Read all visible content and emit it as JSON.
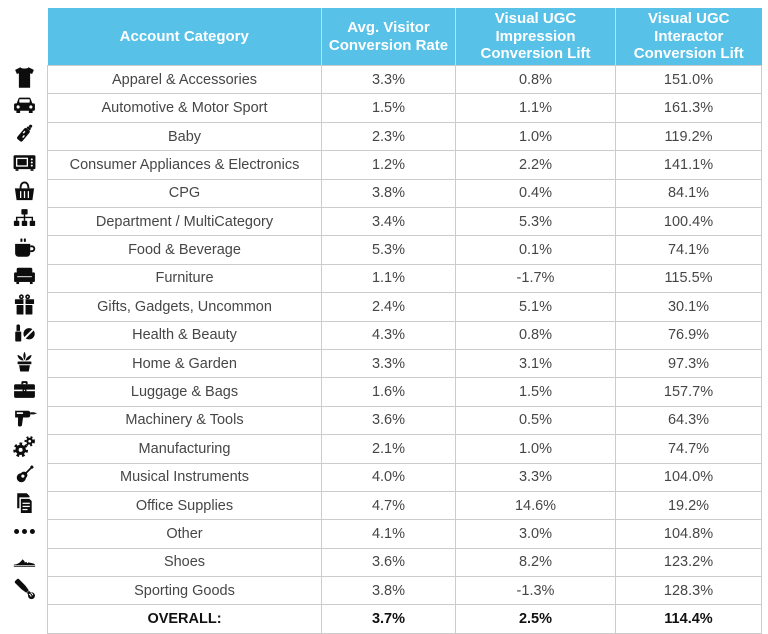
{
  "chart_data": {
    "type": "table",
    "columns": [
      "Account Category",
      "Avg. Visitor Conversion Rate",
      "Visual UGC Impression Conversion Lift",
      "Visual UGC Interactor Conversion Lift"
    ],
    "rows": [
      {
        "icon": "tshirt-icon",
        "category": "Apparel & Accessories",
        "values": [
          "3.3%",
          "0.8%",
          "151.0%"
        ]
      },
      {
        "icon": "car-icon",
        "category": "Automotive & Motor Sport",
        "values": [
          "1.5%",
          "1.1%",
          "161.3%"
        ]
      },
      {
        "icon": "baby-bottle-icon",
        "category": "Baby",
        "values": [
          "2.3%",
          "1.0%",
          "119.2%"
        ]
      },
      {
        "icon": "microwave-icon",
        "category": "Consumer Appliances & Electronics",
        "values": [
          "1.2%",
          "2.2%",
          "141.1%"
        ]
      },
      {
        "icon": "grocery-basket-icon",
        "category": "CPG",
        "values": [
          "3.8%",
          "0.4%",
          "84.1%"
        ]
      },
      {
        "icon": "sitemap-icon",
        "category": "Department / MultiCategory",
        "values": [
          "3.4%",
          "5.3%",
          "100.4%"
        ]
      },
      {
        "icon": "coffee-cup-icon",
        "category": "Food & Beverage",
        "values": [
          "5.3%",
          "0.1%",
          "74.1%"
        ]
      },
      {
        "icon": "couch-icon",
        "category": "Furniture",
        "values": [
          "1.1%",
          "-1.7%",
          "115.5%"
        ]
      },
      {
        "icon": "gift-icon",
        "category": "Gifts, Gadgets, Uncommon",
        "values": [
          "2.4%",
          "5.1%",
          "30.1%"
        ]
      },
      {
        "icon": "cosmetics-icon",
        "category": "Health & Beauty",
        "values": [
          "4.3%",
          "0.8%",
          "76.9%"
        ]
      },
      {
        "icon": "potted-plant-icon",
        "category": "Home & Garden",
        "values": [
          "3.3%",
          "3.1%",
          "97.3%"
        ]
      },
      {
        "icon": "briefcase-icon",
        "category": "Luggage & Bags",
        "values": [
          "1.6%",
          "1.5%",
          "157.7%"
        ]
      },
      {
        "icon": "drill-icon",
        "category": "Machinery & Tools",
        "values": [
          "3.6%",
          "0.5%",
          "64.3%"
        ]
      },
      {
        "icon": "gears-icon",
        "category": "Manufacturing",
        "values": [
          "2.1%",
          "1.0%",
          "74.7%"
        ]
      },
      {
        "icon": "guitar-icon",
        "category": "Musical Instruments",
        "values": [
          "4.0%",
          "3.3%",
          "104.0%"
        ]
      },
      {
        "icon": "documents-icon",
        "category": "Office Supplies",
        "values": [
          "4.7%",
          "14.6%",
          "19.2%"
        ]
      },
      {
        "icon": "ellipsis-icon",
        "category": "Other",
        "values": [
          "4.1%",
          "3.0%",
          "104.8%"
        ]
      },
      {
        "icon": "shoe-icon",
        "category": "Shoes",
        "values": [
          "3.6%",
          "8.2%",
          "123.2%"
        ]
      },
      {
        "icon": "baseball-bat-icon",
        "category": "Sporting Goods",
        "values": [
          "3.8%",
          "-1.3%",
          "128.3%"
        ]
      }
    ],
    "overall": {
      "category": "OVERALL:",
      "values": [
        "3.7%",
        "2.5%",
        "114.4%"
      ]
    }
  },
  "colors": {
    "header_bg": "#57C1E8",
    "header_text": "#FFFFFF",
    "body_text": "#464646",
    "overall_text": "#111111",
    "border": "#CCCCCC",
    "icon": "#0D0D0D"
  }
}
